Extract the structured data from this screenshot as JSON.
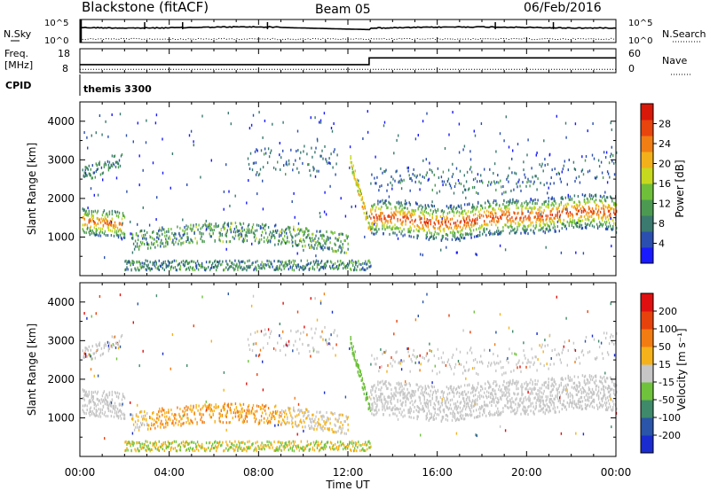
{
  "header": {
    "title": "Blackstone (fitACF)",
    "beam": "Beam 05",
    "date": "06/Feb/2016"
  },
  "noise_panel": {
    "left_label": "N.Sky",
    "right_label": "N.Search",
    "left_ticks": [
      "10^5",
      "10^0"
    ],
    "right_ticks": [
      "10^5",
      "10^0"
    ]
  },
  "freq_panel": {
    "left_label_line1": "Freq.",
    "left_label_line2": "[MHz]",
    "right_label": "Nave",
    "left_ticks": [
      "18",
      "8"
    ],
    "right_ticks": [
      "60",
      "0"
    ],
    "freq_series_mhz": [
      [
        0,
        10.3
      ],
      [
        12.95,
        10.3
      ],
      [
        12.95,
        14.5
      ],
      [
        24,
        14.5
      ]
    ],
    "nave_series": [
      [
        0,
        8
      ],
      [
        24,
        8
      ]
    ]
  },
  "cpid_panel": {
    "label": "CPID",
    "mode_text": "themis 3300"
  },
  "chart_data": [
    {
      "type": "heatmap",
      "name": "Power",
      "ylabel": "Slant Range [km]",
      "colorbar_label": "Power [dB]",
      "ylim": [
        0,
        4500
      ],
      "xlim": [
        0,
        24
      ],
      "yticks": [
        "1000",
        "2000",
        "3000",
        "4000"
      ],
      "colorbar_ticks": [
        "28",
        "24",
        "20",
        "16",
        "12",
        "8",
        "4"
      ],
      "colorbar_colors": [
        "#1a1aff",
        "#2b4fb0",
        "#3a7a6f",
        "#4c9a52",
        "#6fbf3a",
        "#c7d91f",
        "#f2b01a",
        "#f07e14",
        "#e8440e",
        "#d81808"
      ]
    },
    {
      "type": "heatmap",
      "name": "Velocity",
      "ylabel": "Slant Range [km]",
      "colorbar_label": "Velocity [m s⁻¹]",
      "ylim": [
        0,
        4500
      ],
      "xlim": [
        0,
        24
      ],
      "yticks": [
        "1000",
        "2000",
        "3000",
        "4000"
      ],
      "colorbar_ticks": [
        "200",
        "100",
        "50",
        "15",
        "-15",
        "-50",
        "-100",
        "-200"
      ],
      "colorbar_colors": [
        "#1a2cd0",
        "#2a55a8",
        "#3f8a6a",
        "#6fc23c",
        "#c6c6c6",
        "#f5b21a",
        "#f27c12",
        "#e8420c",
        "#e01010"
      ]
    }
  ],
  "xaxis": {
    "ticks": [
      "00:00",
      "04:00",
      "08:00",
      "12:00",
      "16:00",
      "20:00",
      "00:00"
    ],
    "label": "Time UT"
  }
}
